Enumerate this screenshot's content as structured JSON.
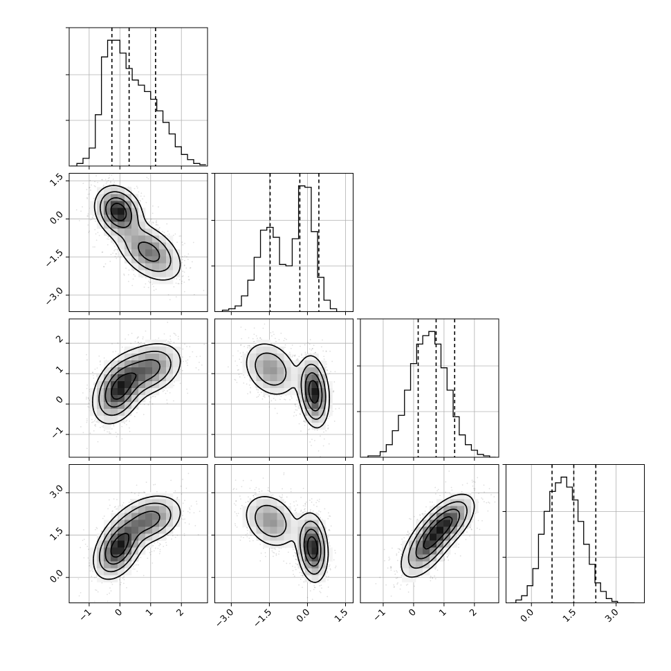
{
  "chart_data": {
    "type": "corner",
    "title": "",
    "layout": "lower-triangle",
    "grid": true,
    "variables": [
      {
        "index": 0,
        "label": "",
        "range": [
          -1.65,
          2.85
        ],
        "ticks": [
          -1,
          0,
          1,
          2
        ],
        "tick_labels": [
          "−1",
          "0",
          "1",
          "2"
        ],
        "quantiles": [
          -0.26,
          0.3,
          1.16
        ],
        "histogram": {
          "edges_start": -1.6,
          "bin_width": 0.2,
          "counts": [
            0,
            2,
            6,
            14,
            40,
            85,
            98,
            98,
            88,
            76,
            67,
            63,
            58,
            52,
            43,
            34,
            25,
            15,
            9,
            5,
            2,
            1
          ]
        }
      },
      {
        "index": 1,
        "label": "",
        "range": [
          -3.65,
          1.8
        ],
        "ticks": [
          1.5,
          0.0,
          -1.5,
          -3.0
        ],
        "tick_labels": [
          "1.5",
          "0.0",
          "−1.5",
          "−3.0"
        ],
        "quantiles": [
          -1.47,
          -0.3,
          0.45
        ],
        "histogram": {
          "edges_start": -3.6,
          "bin_width": 0.25,
          "counts": [
            0,
            1,
            2,
            4,
            11,
            22,
            38,
            57,
            59,
            52,
            33,
            32,
            51,
            88,
            87,
            56,
            24,
            8,
            2,
            0,
            0,
            0
          ]
        }
      },
      {
        "index": 2,
        "label": "",
        "range": [
          -1.75,
          2.8
        ],
        "ticks": [
          -1,
          0,
          1,
          2
        ],
        "tick_labels": [
          "−1",
          "0",
          "1",
          "2"
        ],
        "quantiles": [
          0.15,
          0.74,
          1.35
        ],
        "histogram": {
          "edges_start": -1.7,
          "bin_width": 0.2,
          "counts": [
            0,
            1,
            1,
            4,
            9,
            19,
            30,
            48,
            67,
            81,
            87,
            90,
            81,
            64,
            48,
            29,
            16,
            9,
            5,
            2,
            1,
            0
          ]
        }
      },
      {
        "index": 3,
        "label": "",
        "range": [
          -0.9,
          4.0
        ],
        "ticks": [
          0.0,
          1.5,
          3.0
        ],
        "tick_labels": [
          "0.0",
          "1.5",
          "3.0"
        ],
        "quantiles": [
          0.73,
          1.5,
          2.28
        ],
        "histogram": {
          "edges_start": -0.75,
          "bin_width": 0.2,
          "counts": [
            0,
            2,
            5,
            12,
            24,
            48,
            64,
            78,
            84,
            88,
            81,
            72,
            57,
            41,
            27,
            14,
            8,
            3,
            1,
            0,
            0,
            0
          ]
        }
      }
    ],
    "pair_panels": [
      {
        "row": 1,
        "col": 0,
        "x_var": 0,
        "y_var": 1,
        "modes": [
          {
            "x": -0.05,
            "y": 0.3,
            "sx": 0.38,
            "sy": 0.5,
            "rho": -0.2,
            "w": 0.48
          },
          {
            "x": 0.95,
            "y": -1.3,
            "sx": 0.55,
            "sy": 0.6,
            "rho": -0.45,
            "w": 0.52
          }
        ]
      },
      {
        "row": 2,
        "col": 0,
        "x_var": 0,
        "y_var": 2,
        "modes": [
          {
            "x": -0.05,
            "y": 0.45,
            "sx": 0.42,
            "sy": 0.55,
            "rho": 0.35,
            "w": 0.55
          },
          {
            "x": 0.95,
            "y": 1.15,
            "sx": 0.55,
            "sy": 0.45,
            "rho": 0.3,
            "w": 0.45
          }
        ]
      },
      {
        "row": 2,
        "col": 1,
        "x_var": 1,
        "y_var": 2,
        "modes": [
          {
            "x": -1.45,
            "y": 1.15,
            "sx": 0.55,
            "sy": 0.48,
            "rho": -0.25,
            "w": 0.45
          },
          {
            "x": 0.25,
            "y": 0.4,
            "sx": 0.3,
            "sy": 0.58,
            "rho": -0.2,
            "w": 0.55
          }
        ]
      },
      {
        "row": 3,
        "col": 0,
        "x_var": 0,
        "y_var": 3,
        "modes": [
          {
            "x": -0.05,
            "y": 1.05,
            "sx": 0.4,
            "sy": 0.55,
            "rho": 0.4,
            "w": 0.55
          },
          {
            "x": 0.95,
            "y": 2.05,
            "sx": 0.55,
            "sy": 0.45,
            "rho": 0.3,
            "w": 0.45
          }
        ]
      },
      {
        "row": 3,
        "col": 1,
        "x_var": 1,
        "y_var": 3,
        "modes": [
          {
            "x": -1.45,
            "y": 2.0,
            "sx": 0.55,
            "sy": 0.5,
            "rho": -0.25,
            "w": 0.45
          },
          {
            "x": 0.2,
            "y": 1.05,
            "sx": 0.3,
            "sy": 0.6,
            "rho": -0.15,
            "w": 0.55
          }
        ]
      },
      {
        "row": 3,
        "col": 2,
        "x_var": 2,
        "y_var": 3,
        "modes": [
          {
            "x": 0.45,
            "y": 1.15,
            "sx": 0.45,
            "sy": 0.6,
            "rho": 0.6,
            "w": 0.55
          },
          {
            "x": 1.15,
            "y": 2.0,
            "sx": 0.45,
            "sy": 0.5,
            "rho": 0.55,
            "w": 0.45
          }
        ]
      }
    ],
    "contour_levels": [
      "0.5σ",
      "1σ",
      "1.5σ",
      "2σ"
    ],
    "colors": {
      "line": "#000000",
      "grid": "#b0b0b0",
      "points": "#000000",
      "background": "#ffffff"
    }
  }
}
